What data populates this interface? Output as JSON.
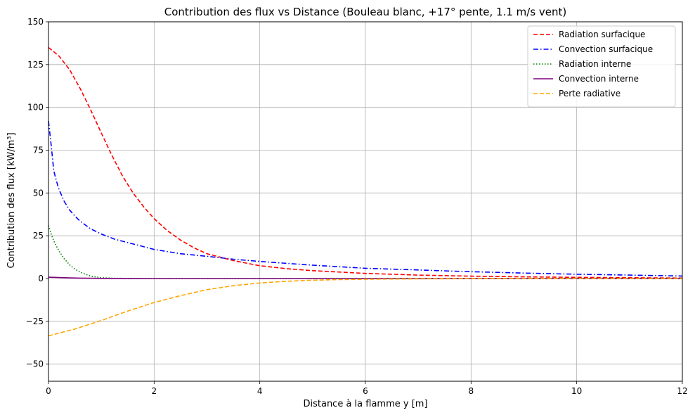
{
  "chart_data": {
    "type": "line",
    "title": "Contribution des flux vs Distance (Bouleau blanc, +17° pente, 1.1 m/s vent)",
    "xlabel": "Distance à la flamme y [m]",
    "ylabel": "Contribution des flux [kW/m³]",
    "xlim": [
      0,
      12
    ],
    "ylim": [
      -60,
      150
    ],
    "xticks": [
      0,
      2,
      4,
      6,
      8,
      10,
      12
    ],
    "yticks": [
      -50,
      -25,
      0,
      25,
      50,
      75,
      100,
      125,
      150
    ],
    "grid": true,
    "legend_position": "top-right",
    "series": [
      {
        "name": "Radiation surfacique",
        "color": "#ff0000",
        "dash": "dashed",
        "x": [
          0,
          0.2,
          0.4,
          0.6,
          0.8,
          1.0,
          1.2,
          1.4,
          1.6,
          1.8,
          2.0,
          2.25,
          2.5,
          2.75,
          3.0,
          3.5,
          4.0,
          4.5,
          5.0,
          6.0,
          7.0,
          8.0,
          9.0,
          10.0,
          11.0,
          12.0
        ],
        "y": [
          135,
          130,
          122,
          111,
          98.5,
          85,
          72,
          60,
          50,
          42,
          35,
          28,
          22.5,
          18,
          14.5,
          10.5,
          7.5,
          5.8,
          4.6,
          3.0,
          2.0,
          1.4,
          1.0,
          0.7,
          0.5,
          0.3
        ]
      },
      {
        "name": "Convection surfacique",
        "color": "#0000ff",
        "dash": "dashdot",
        "x": [
          0,
          0.05,
          0.1,
          0.15,
          0.2,
          0.3,
          0.4,
          0.5,
          0.6,
          0.8,
          1.0,
          1.25,
          1.5,
          2.0,
          2.5,
          3.0,
          3.5,
          4.0,
          5.0,
          6.0,
          7.0,
          8.0,
          9.0,
          10.0,
          11.0,
          12.0
        ],
        "y": [
          92,
          78,
          63,
          57,
          52,
          45,
          40,
          36.5,
          33.5,
          29,
          26,
          23,
          21,
          17,
          14.5,
          13,
          11.3,
          10,
          7.8,
          6,
          5,
          4,
          3.2,
          2.5,
          2,
          1.5
        ]
      },
      {
        "name": "Radiation interne",
        "color": "#008000",
        "dash": "dotted",
        "x": [
          0,
          0.05,
          0.1,
          0.2,
          0.3,
          0.4,
          0.5,
          0.6,
          0.7,
          0.8,
          0.9,
          1.0,
          1.2,
          1.5,
          2.0,
          4.0,
          6.0,
          8.0,
          10.0,
          12.0
        ],
        "y": [
          31,
          26,
          22,
          16,
          11.5,
          8,
          5.5,
          3.8,
          2.5,
          1.5,
          0.9,
          0.5,
          0.2,
          0.05,
          0,
          0,
          0,
          0,
          0,
          0
        ]
      },
      {
        "name": "Convection interne",
        "color": "#800080",
        "dash": "solid",
        "x": [
          0,
          0.3,
          0.6,
          1.0,
          1.5,
          2.0,
          4.0,
          6.0,
          8.0,
          10.0,
          12.0
        ],
        "y": [
          0.8,
          0.5,
          0.25,
          0.1,
          0.03,
          0,
          0,
          0,
          0,
          0,
          0
        ]
      },
      {
        "name": "Perte radiative",
        "color": "#ffa500",
        "dash": "dashed",
        "x": [
          0,
          0.5,
          1.0,
          1.5,
          2.0,
          2.5,
          3.0,
          3.5,
          4.0,
          4.5,
          5.0,
          5.5,
          6.0,
          7.0,
          8.0,
          9.0,
          10.0,
          11.0,
          12.0
        ],
        "y": [
          -33.5,
          -29.5,
          -24.5,
          -19,
          -14,
          -10,
          -6.5,
          -4.2,
          -2.6,
          -1.6,
          -1.0,
          -0.6,
          -0.4,
          -0.15,
          -0.07,
          -0.03,
          -0.01,
          0,
          0
        ]
      }
    ]
  }
}
